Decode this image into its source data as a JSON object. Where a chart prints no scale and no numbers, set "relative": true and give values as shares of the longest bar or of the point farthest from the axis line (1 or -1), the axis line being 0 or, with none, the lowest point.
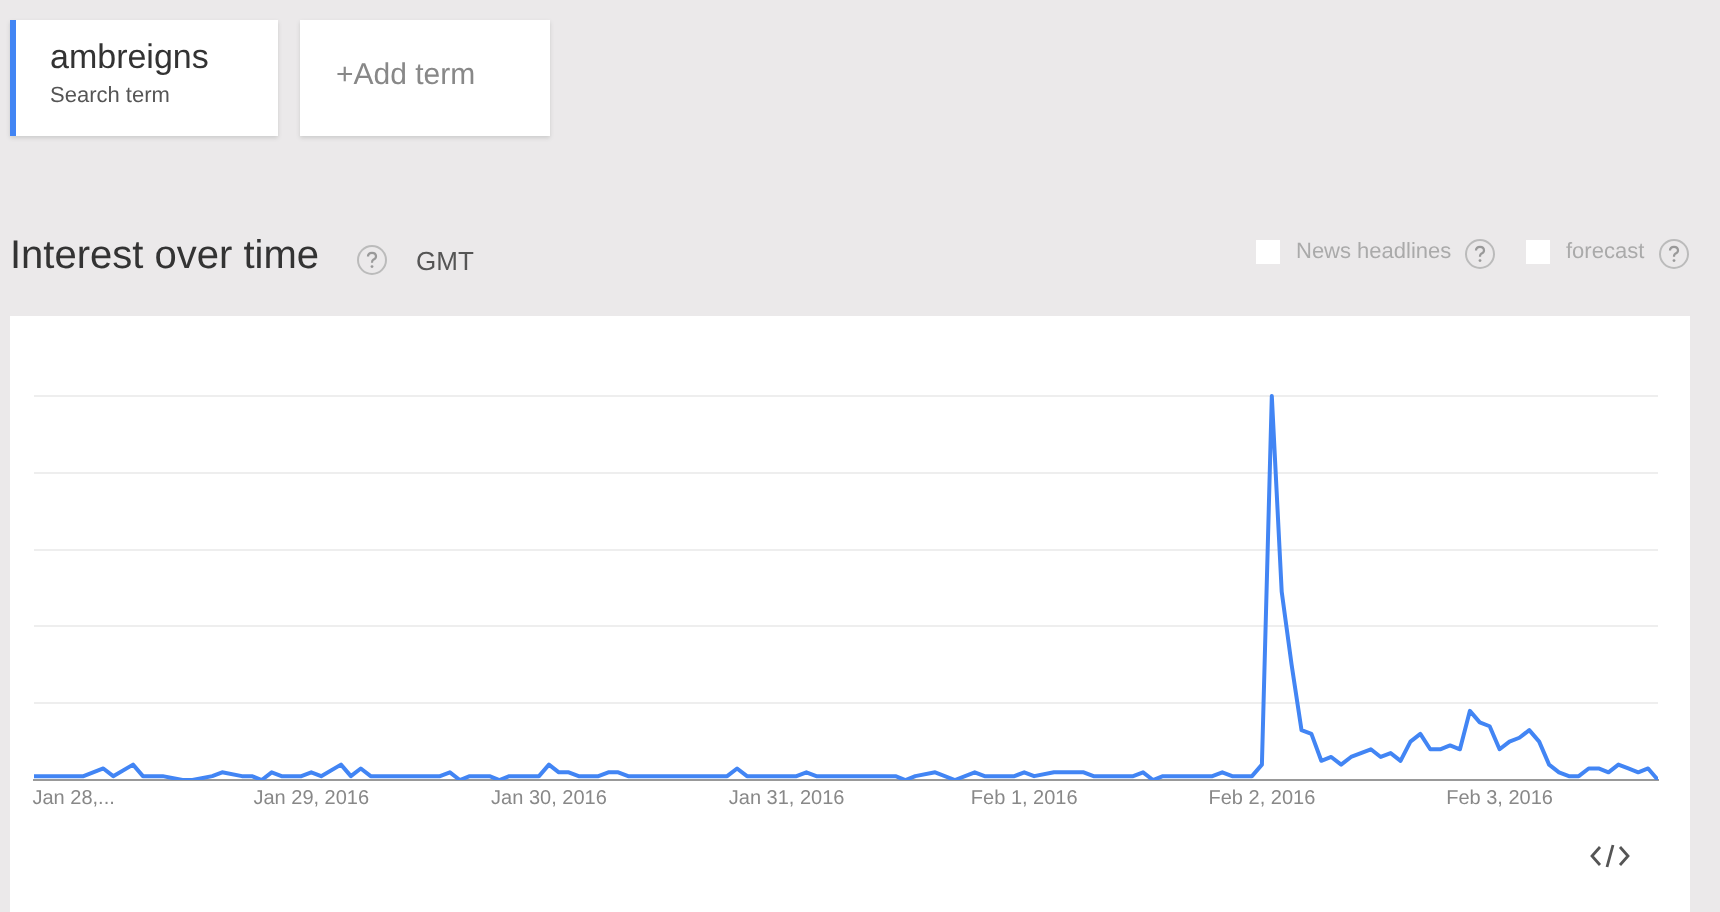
{
  "chart_data": {
    "type": "line",
    "title": "Interest over time",
    "relative": true,
    "grid": "y",
    "legend": "top left",
    "marker": "none",
    "line_style": "solid",
    "annotations": [
      "Search term",
      "+Add term",
      "GMT",
      "News headlines",
      "forecast"
    ],
    "xlim": [
      "2016-01-27T20:00",
      "2016-02-03T16:00"
    ],
    "xticks": [
      {
        "value": "2016-01-28T00:00",
        "label": "Jan 28,..."
      },
      {
        "value": "2016-01-29T00:00",
        "label": "Jan 29, 2016"
      },
      {
        "value": "2016-01-30T00:00",
        "label": "Jan 30, 2016"
      },
      {
        "value": "2016-01-31T00:00",
        "label": "Jan 31, 2016"
      },
      {
        "value": "2016-02-01T00:00",
        "label": "Feb 1, 2016"
      },
      {
        "value": "2016-02-02T00:00",
        "label": "Feb 2, 2016"
      },
      {
        "value": "2016-02-03T00:00",
        "label": "Feb 3, 2016"
      }
    ],
    "series": [
      {
        "name": "ambreigns",
        "color": "#4285f4",
        "x": [
          "2016-01-27T20:00",
          "2016-01-28T01:00",
          "2016-01-28T03:00",
          "2016-01-28T04:00",
          "2016-01-28T06:00",
          "2016-01-28T07:00",
          "2016-01-28T09:00",
          "2016-01-28T11:00",
          "2016-01-28T12:00",
          "2016-01-28T14:00",
          "2016-01-28T15:00",
          "2016-01-28T17:00",
          "2016-01-28T18:00",
          "2016-01-28T19:00",
          "2016-01-28T20:00",
          "2016-01-28T21:00",
          "2016-01-28T23:00",
          "2016-01-29T00:00",
          "2016-01-29T01:00",
          "2016-01-29T03:00",
          "2016-01-29T04:00",
          "2016-01-29T05:00",
          "2016-01-29T06:00",
          "2016-01-29T13:00",
          "2016-01-29T14:00",
          "2016-01-29T15:00",
          "2016-01-29T16:00",
          "2016-01-29T18:00",
          "2016-01-29T19:00",
          "2016-01-29T20:00",
          "2016-01-29T23:00",
          "2016-01-30T00:00",
          "2016-01-30T01:00",
          "2016-01-30T02:00",
          "2016-01-30T03:00",
          "2016-01-30T05:00",
          "2016-01-30T06:00",
          "2016-01-30T07:00",
          "2016-01-30T08:00",
          "2016-01-30T18:00",
          "2016-01-30T19:00",
          "2016-01-30T20:00",
          "2016-01-31T01:00",
          "2016-01-31T02:00",
          "2016-01-31T03:00",
          "2016-01-31T07:00",
          "2016-01-31T11:00",
          "2016-01-31T12:00",
          "2016-01-31T13:00",
          "2016-01-31T15:00",
          "2016-01-31T17:00",
          "2016-01-31T19:00",
          "2016-01-31T20:00",
          "2016-01-31T23:00",
          "2016-02-01T00:00",
          "2016-02-01T01:00",
          "2016-02-01T03:00",
          "2016-02-01T06:00",
          "2016-02-01T07:00",
          "2016-02-01T11:00",
          "2016-02-01T12:00",
          "2016-02-01T13:00",
          "2016-02-01T14:00",
          "2016-02-01T19:00",
          "2016-02-01T20:00",
          "2016-02-01T21:00",
          "2016-02-01T23:00",
          "2016-02-02T00:00",
          "2016-02-02T01:00",
          "2016-02-02T02:00",
          "2016-02-02T03:00",
          "2016-02-02T04:00",
          "2016-02-02T05:00",
          "2016-02-02T06:00",
          "2016-02-02T07:00",
          "2016-02-02T08:00",
          "2016-02-02T09:00",
          "2016-02-02T11:00",
          "2016-02-02T12:00",
          "2016-02-02T13:00",
          "2016-02-02T14:00",
          "2016-02-02T15:00",
          "2016-02-02T16:00",
          "2016-02-02T17:00",
          "2016-02-02T18:00",
          "2016-02-02T19:00",
          "2016-02-02T20:00",
          "2016-02-02T21:00",
          "2016-02-02T22:00",
          "2016-02-02T23:00",
          "2016-02-03T00:00",
          "2016-02-03T01:00",
          "2016-02-03T02:00",
          "2016-02-03T03:00",
          "2016-02-03T04:00",
          "2016-02-03T05:00",
          "2016-02-03T06:00",
          "2016-02-03T07:00",
          "2016-02-03T08:00",
          "2016-02-03T09:00",
          "2016-02-03T10:00",
          "2016-02-03T11:00",
          "2016-02-03T12:00",
          "2016-02-03T13:00",
          "2016-02-03T14:00",
          "2016-02-03T15:00",
          "2016-02-03T16:00"
        ],
        "values": [
          0.01,
          0.01,
          0.03,
          0.01,
          0.04,
          0.01,
          0.01,
          0,
          0,
          0.01,
          0.02,
          0.01,
          0.01,
          0,
          0.02,
          0.01,
          0.01,
          0.02,
          0.01,
          0.04,
          0.01,
          0.03,
          0.01,
          0.01,
          0.02,
          0,
          0.01,
          0.01,
          0,
          0.01,
          0.01,
          0.04,
          0.02,
          0.02,
          0.01,
          0.01,
          0.02,
          0.02,
          0.01,
          0.01,
          0.03,
          0.01,
          0.01,
          0.02,
          0.01,
          0.01,
          0.01,
          0,
          0.01,
          0.02,
          0,
          0.02,
          0.01,
          0.01,
          0.02,
          0.01,
          0.02,
          0.02,
          0.01,
          0.01,
          0.02,
          0,
          0.01,
          0.01,
          0.02,
          0.01,
          0.01,
          0.04,
          1,
          0.49,
          0.3,
          0.13,
          0.12,
          0.05,
          0.06,
          0.04,
          0.06,
          0.08,
          0.06,
          0.07,
          0.05,
          0.1,
          0.12,
          0.08,
          0.08,
          0.09,
          0.08,
          0.18,
          0.15,
          0.14,
          0.08,
          0.1,
          0.11,
          0.13,
          0.1,
          0.04,
          0.02,
          0.01,
          0.01,
          0.03,
          0.03,
          0.02,
          0.04,
          0.03,
          0.02,
          0.03,
          0
        ]
      }
    ]
  }
}
